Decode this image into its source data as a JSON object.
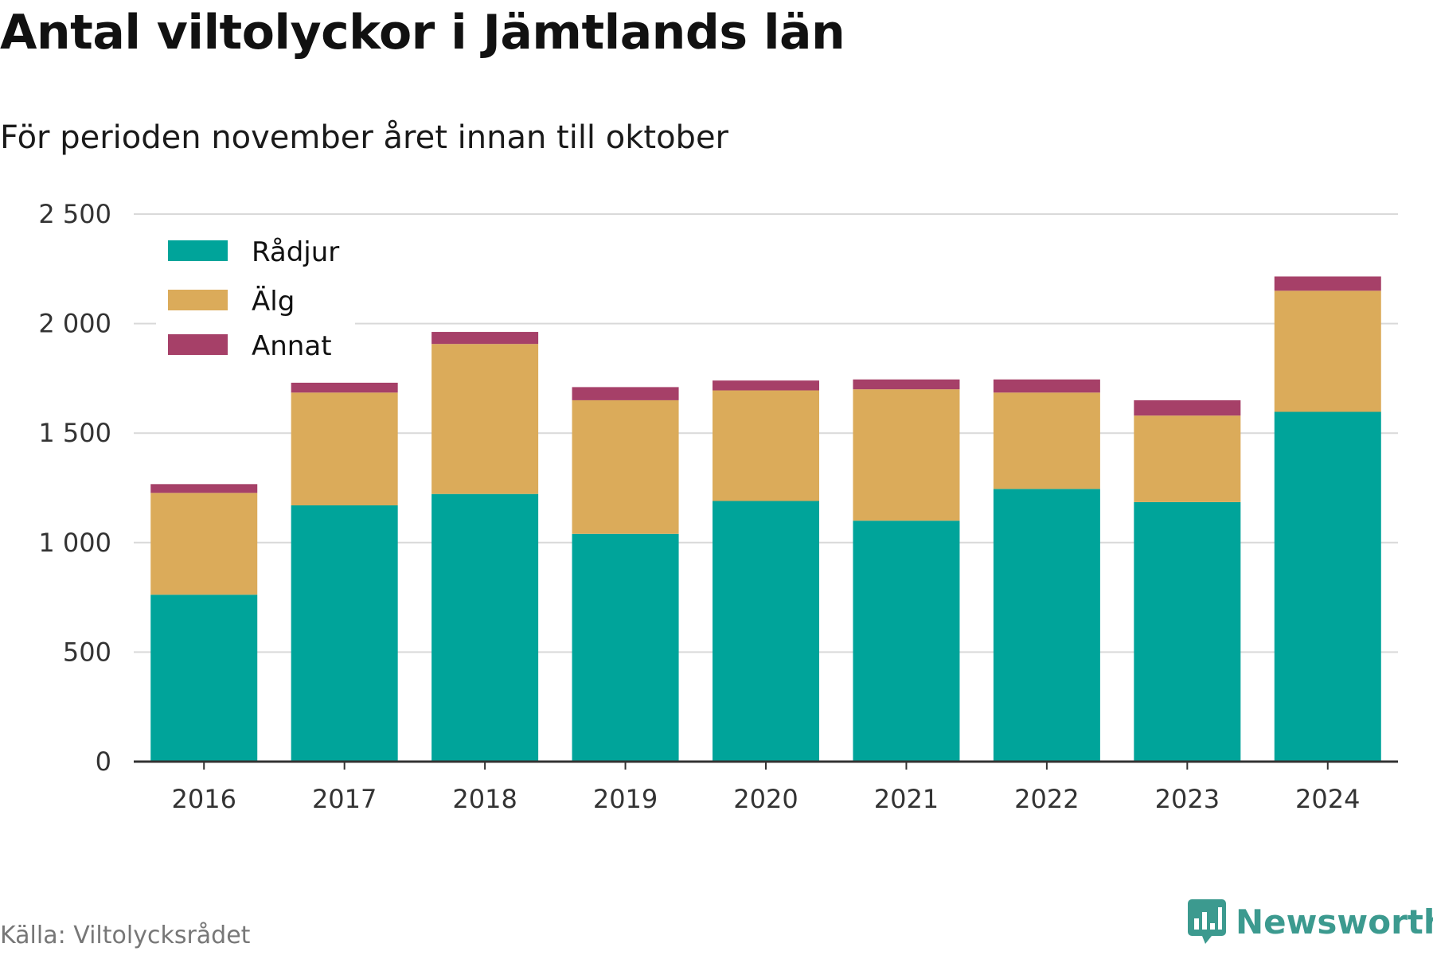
{
  "title": "Antal viltolyckor i Jämtlands län",
  "subtitle": "För perioden november året innan till oktober",
  "source": "Källa: Viltolycksrådet",
  "brand": "Newsworthy",
  "colors": {
    "radjur": "#00a49a",
    "alg": "#dbab5a",
    "annat": "#a64068",
    "grid": "#d9d9d9",
    "axis": "#333333",
    "brand": "#3c9a8f"
  },
  "chart_data": {
    "type": "bar",
    "stacked": true,
    "categories": [
      "2016",
      "2017",
      "2018",
      "2019",
      "2020",
      "2021",
      "2022",
      "2023",
      "2024"
    ],
    "series": [
      {
        "name": "Rådjur",
        "color": "#00a49a",
        "values": [
          762,
          1170,
          1222,
          1040,
          1190,
          1100,
          1245,
          1185,
          1597
        ]
      },
      {
        "name": "Älg",
        "color": "#dbab5a",
        "values": [
          465,
          515,
          685,
          610,
          505,
          600,
          440,
          395,
          553
        ]
      },
      {
        "name": "Annat",
        "color": "#a64068",
        "values": [
          40,
          45,
          55,
          60,
          45,
          45,
          60,
          70,
          65
        ]
      }
    ],
    "ylim": [
      0,
      2500
    ],
    "yticks": [
      0,
      500,
      1000,
      1500,
      2000,
      2500
    ],
    "ytick_labels": [
      "0",
      "500",
      "1 000",
      "1 500",
      "2 000",
      "2 500"
    ],
    "grid": true,
    "legend_position": "top-left"
  }
}
